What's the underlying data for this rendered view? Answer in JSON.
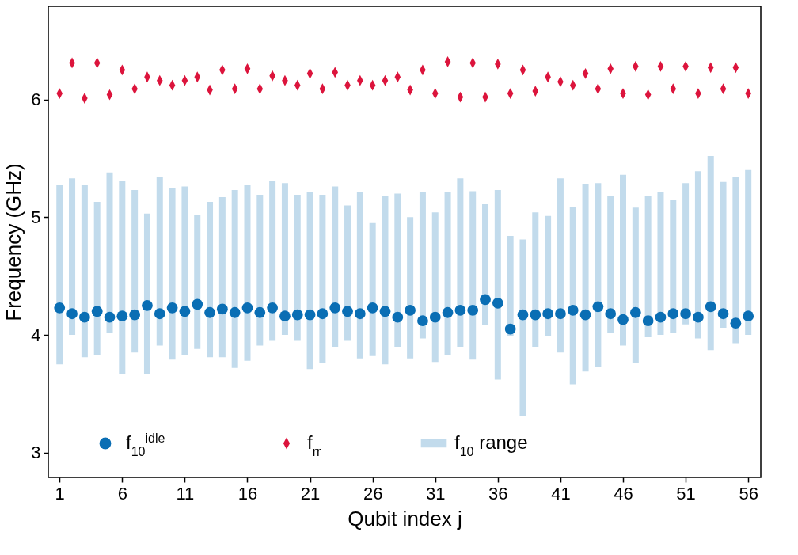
{
  "chart_data": {
    "type": "scatter",
    "xlabel": "Qubit index j",
    "ylabel": "Frequency (GHz)",
    "legend": "bottom",
    "xlim": [
      0.1,
      57.0
    ],
    "xticks": [
      1,
      6,
      11,
      16,
      21,
      26,
      31,
      36,
      41,
      46,
      51,
      56
    ],
    "ylim": [
      2.79,
      6.79
    ],
    "yticks": [
      3,
      4,
      5,
      6
    ],
    "x": [
      1,
      2,
      3,
      4,
      5,
      6,
      7,
      8,
      9,
      10,
      11,
      12,
      13,
      14,
      15,
      16,
      17,
      18,
      19,
      20,
      21,
      22,
      23,
      24,
      25,
      26,
      27,
      28,
      29,
      30,
      31,
      32,
      33,
      34,
      35,
      36,
      37,
      38,
      39,
      40,
      41,
      42,
      43,
      44,
      45,
      46,
      47,
      48,
      49,
      50,
      51,
      52,
      53,
      54,
      55,
      56
    ],
    "series": [
      {
        "name": "f$_{10}$$^{idle}$",
        "marker": "circle",
        "color": "#0a6eb4",
        "values": [
          4.23,
          4.18,
          4.15,
          4.2,
          4.15,
          4.16,
          4.17,
          4.25,
          4.18,
          4.23,
          4.2,
          4.26,
          4.19,
          4.22,
          4.19,
          4.23,
          4.19,
          4.23,
          4.16,
          4.17,
          4.17,
          4.18,
          4.23,
          4.2,
          4.18,
          4.23,
          4.2,
          4.15,
          4.21,
          4.12,
          4.15,
          4.19,
          4.21,
          4.21,
          4.3,
          4.27,
          4.05,
          4.17,
          4.17,
          4.18,
          4.18,
          4.21,
          4.17,
          4.24,
          4.18,
          4.13,
          4.19,
          4.12,
          4.15,
          4.18,
          4.18,
          4.15,
          4.24,
          4.18,
          4.1,
          4.16
        ]
      },
      {
        "name": "f$_{rr}$",
        "marker": "diamond",
        "color": "#dc143c",
        "values": [
          6.05,
          6.31,
          6.01,
          6.31,
          6.04,
          6.25,
          6.09,
          6.19,
          6.16,
          6.12,
          6.16,
          6.19,
          6.08,
          6.25,
          6.09,
          6.26,
          6.09,
          6.2,
          6.16,
          6.12,
          6.22,
          6.09,
          6.23,
          6.12,
          6.16,
          6.12,
          6.16,
          6.19,
          6.08,
          6.25,
          6.05,
          6.32,
          6.02,
          6.31,
          6.02,
          6.3,
          6.05,
          6.25,
          6.07,
          6.19,
          6.15,
          6.12,
          6.22,
          6.09,
          6.26,
          6.05,
          6.28,
          6.04,
          6.28,
          6.09,
          6.28,
          6.05,
          6.27,
          6.09,
          6.27,
          6.05
        ]
      },
      {
        "name": "f$_{10}$ range",
        "type": "bar",
        "color": "#c2dbec",
        "base": [
          3.75,
          4.0,
          3.81,
          3.83,
          4.02,
          3.67,
          3.85,
          3.67,
          3.91,
          3.79,
          3.83,
          3.88,
          3.81,
          3.81,
          3.72,
          3.78,
          3.91,
          3.95,
          4.0,
          3.95,
          3.71,
          3.76,
          3.9,
          3.95,
          3.8,
          3.82,
          3.75,
          3.9,
          3.8,
          3.97,
          3.77,
          3.83,
          3.9,
          3.79,
          4.08,
          3.62,
          3.99,
          3.31,
          3.9,
          3.99,
          3.85,
          3.58,
          3.69,
          3.73,
          4.02,
          3.91,
          3.76,
          3.98,
          4.0,
          4.02,
          4.09,
          3.97,
          3.87,
          4.06,
          3.93,
          4.0
        ],
        "values": [
          1.52,
          1.33,
          1.46,
          1.3,
          1.36,
          1.64,
          1.38,
          1.36,
          1.43,
          1.46,
          1.43,
          1.14,
          1.32,
          1.36,
          1.51,
          1.49,
          1.28,
          1.36,
          1.29,
          1.24,
          1.5,
          1.43,
          1.36,
          1.15,
          1.41,
          1.13,
          1.43,
          1.3,
          1.2,
          1.24,
          1.27,
          1.38,
          1.43,
          1.43,
          1.03,
          1.61,
          0.85,
          1.5,
          1.14,
          1.02,
          1.48,
          1.51,
          1.59,
          1.56,
          1.16,
          1.45,
          1.32,
          1.2,
          1.21,
          1.13,
          1.2,
          1.42,
          1.65,
          1.24,
          1.41,
          1.4
        ]
      }
    ]
  }
}
